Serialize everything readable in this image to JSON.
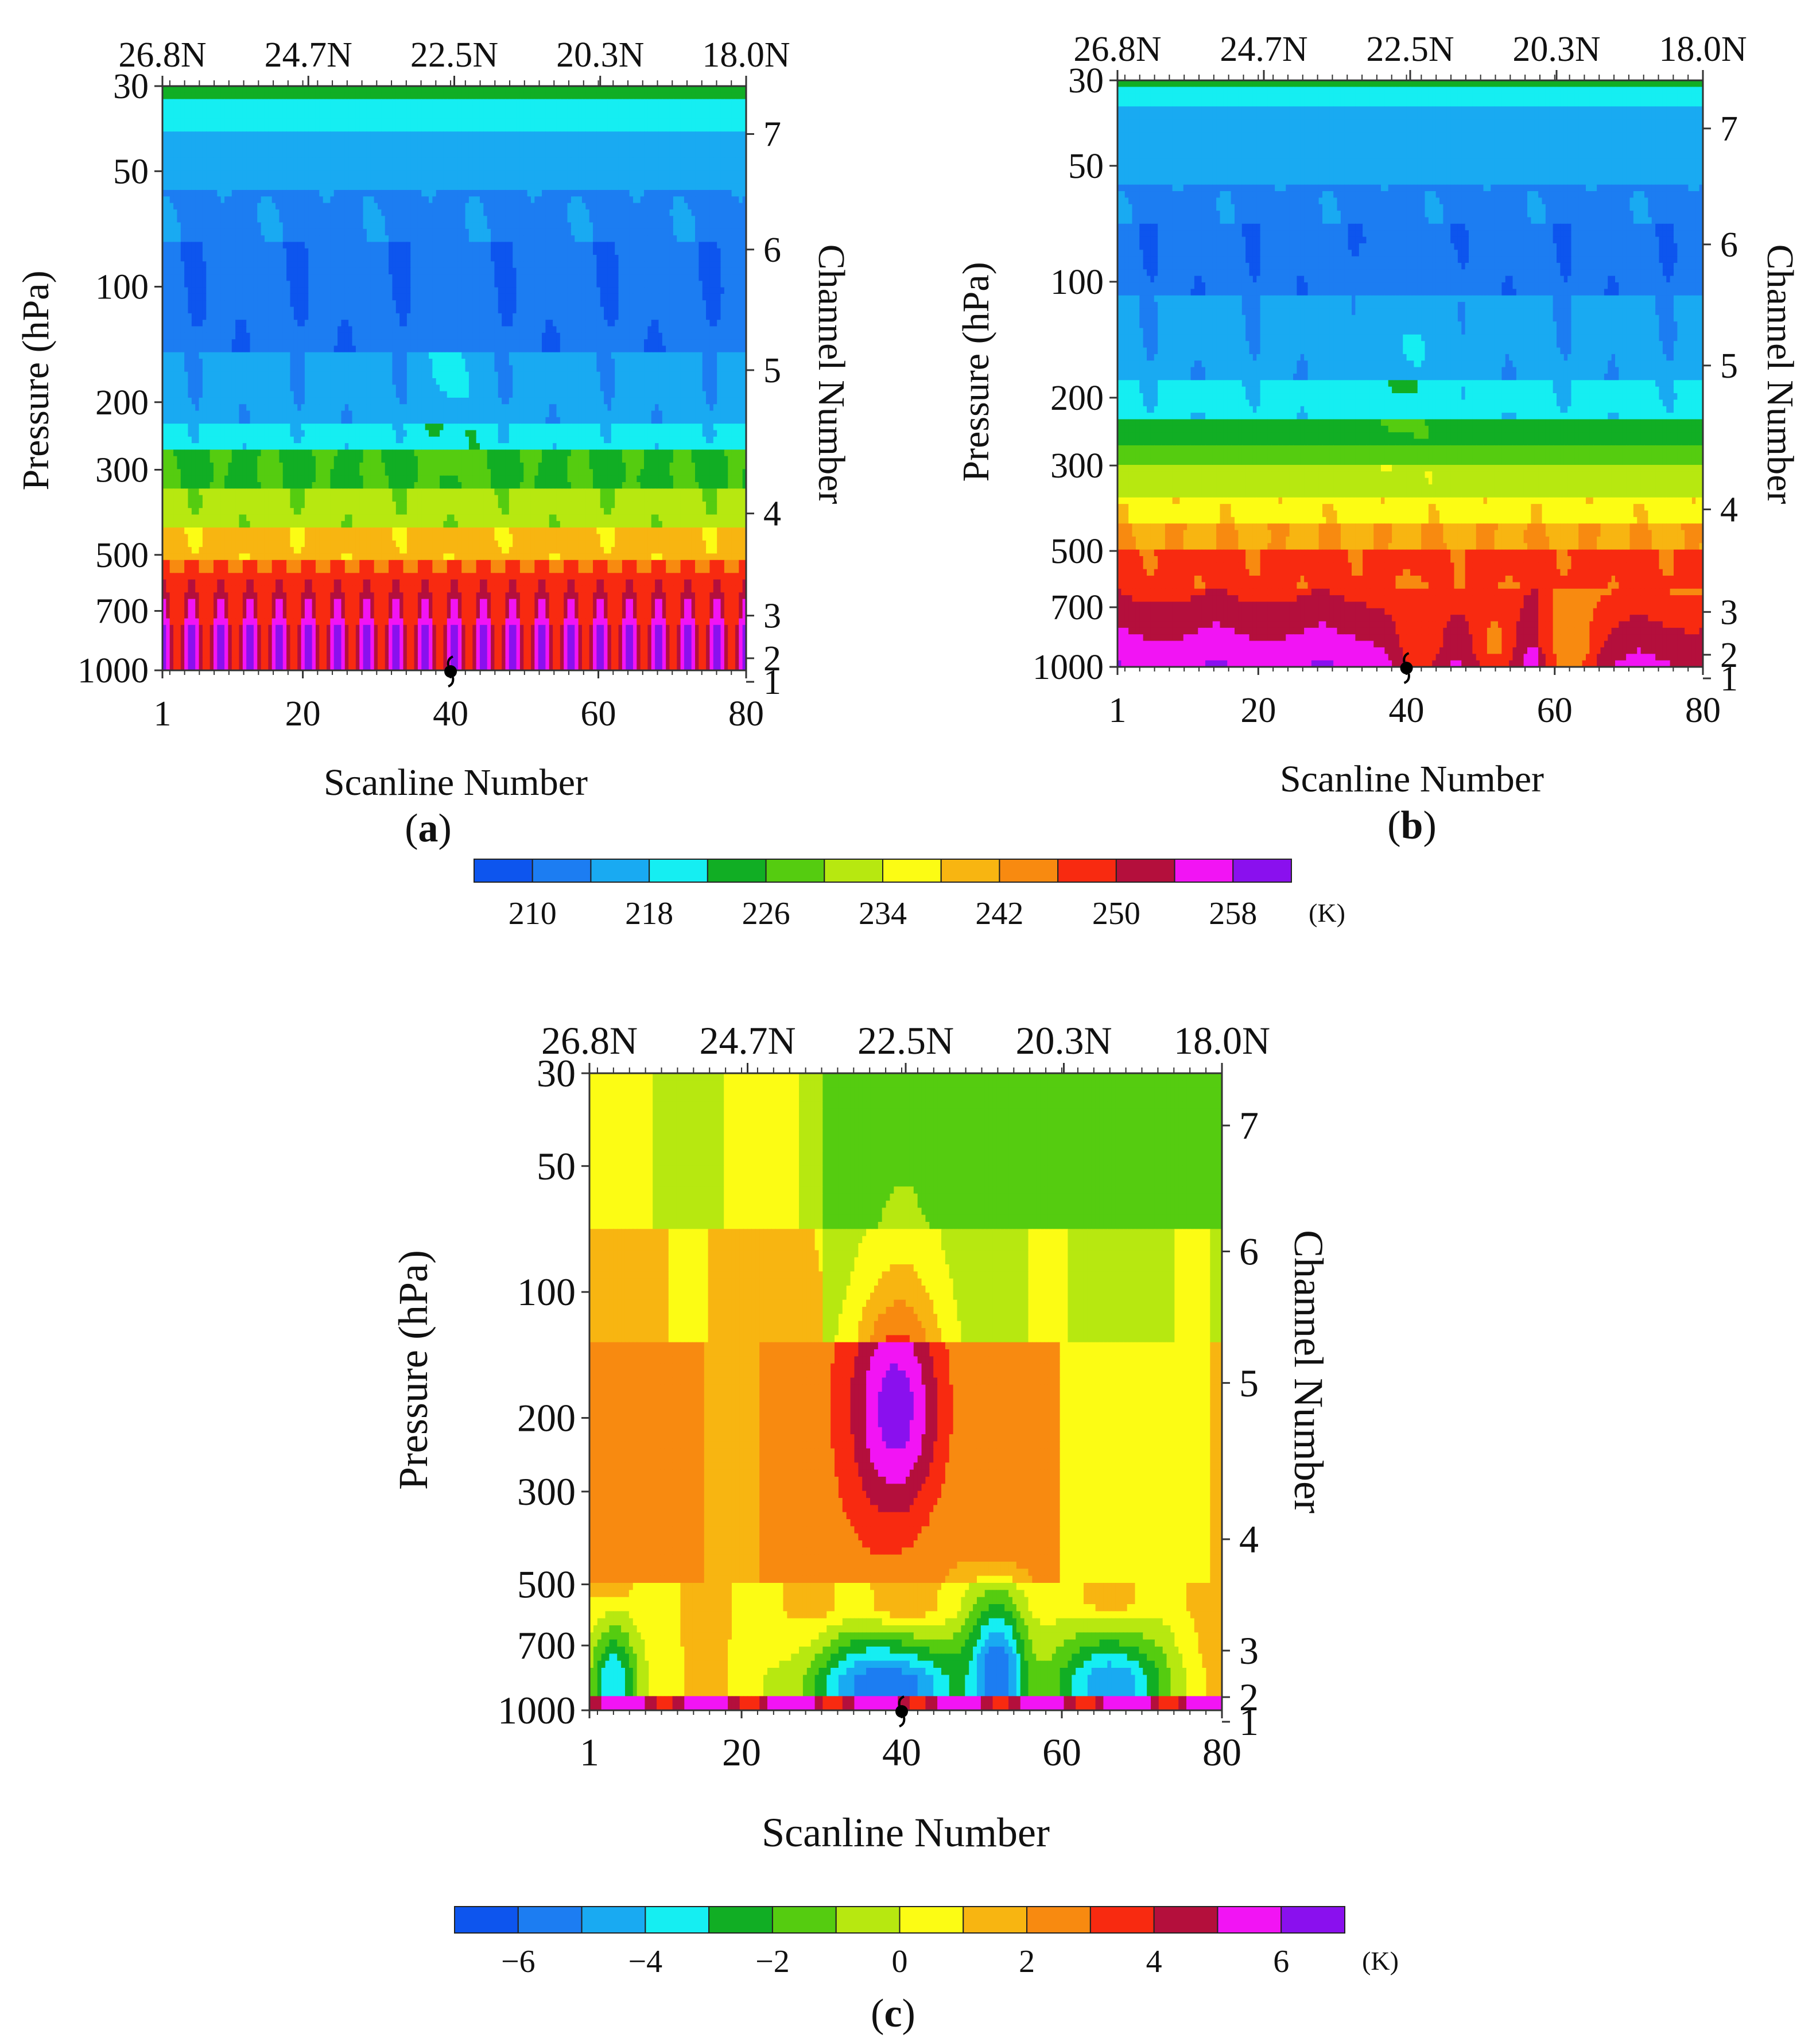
{
  "chart_data": [
    {
      "type": "heatmap",
      "panel_label": "a",
      "title": "",
      "xlabel": "Scanline Number",
      "ylabel": "Pressure (hPa)",
      "y2label": "Channel Number",
      "x_ticks": [
        1,
        20,
        40,
        60,
        80
      ],
      "top_ticks": [
        "26.8N",
        "24.7N",
        "22.5N",
        "20.3N",
        "18.0N"
      ],
      "y_ticks": [
        30,
        50,
        100,
        200,
        300,
        500,
        700,
        1000
      ],
      "channel_ticks": [
        1,
        2,
        3,
        4,
        5,
        6,
        7
      ],
      "xlim": [
        1,
        80
      ],
      "ylim": [
        1000,
        30
      ],
      "storm_center_scanline": 40,
      "colorbar": "temperature",
      "field": {
        "bands": [
          {
            "p_bottom": 1000,
            "p_top": 520,
            "value_low": 254,
            "value_high": 262,
            "amp": 0.12
          },
          {
            "p_bottom": 520,
            "p_top": 420,
            "value_low": 238,
            "value_high": 240,
            "amp": 0.05
          },
          {
            "p_bottom": 420,
            "p_top": 330,
            "value_low": 230,
            "value_high": 233,
            "amp": 0.06
          },
          {
            "p_bottom": 330,
            "p_top": 270,
            "value_low": 224,
            "value_high": 227,
            "amp": 0.06
          },
          {
            "p_bottom": 270,
            "p_top": 230,
            "value_low": 218,
            "value_high": 221,
            "amp": 0.04
          },
          {
            "p_bottom": 230,
            "p_top": 150,
            "value_low": 214,
            "value_high": 216,
            "amp": 0.05
          },
          {
            "p_bottom": 150,
            "p_top": 75,
            "value_low": 210,
            "value_high": 211,
            "amp": 0.05
          },
          {
            "p_bottom": 75,
            "p_top": 55,
            "value_low": 213,
            "value_high": 214,
            "amp": 0.05
          },
          {
            "p_bottom": 55,
            "p_top": 40,
            "value_low": 216,
            "value_high": 217,
            "amp": 0.06
          },
          {
            "p_bottom": 40,
            "p_top": 33,
            "value_low": 220,
            "value_high": 221,
            "amp": 0.08
          },
          {
            "p_bottom": 33,
            "p_top": 30,
            "value_low": 224,
            "value_high": 225,
            "amp": 0.1
          }
        ],
        "warm_core": {
          "center": 40,
          "width": 2.2,
          "p_low": 330,
          "p_high": 80,
          "boost": 4
        }
      }
    },
    {
      "type": "heatmap",
      "panel_label": "b",
      "title": "",
      "xlabel": "Scanline Number",
      "ylabel": "Pressure (hPa)",
      "y2label": "Channel Number",
      "x_ticks": [
        1,
        20,
        40,
        60,
        80
      ],
      "top_ticks": [
        "26.8N",
        "24.7N",
        "22.5N",
        "20.3N",
        "18.0N"
      ],
      "y_ticks": [
        30,
        50,
        100,
        200,
        300,
        500,
        700,
        1000
      ],
      "channel_ticks": [
        1,
        2,
        3,
        4,
        5,
        6,
        7
      ],
      "xlim": [
        1,
        80
      ],
      "ylim": [
        1000,
        30
      ],
      "storm_center_scanline": 40,
      "colorbar": "temperature",
      "field": {
        "bands": [
          {
            "p_bottom": 1000,
            "p_top": 620,
            "value_low": 250,
            "value_high": 260,
            "amp": 0.06
          },
          {
            "p_bottom": 620,
            "p_top": 500,
            "value_low": 246,
            "value_high": 248,
            "amp": 0.04
          },
          {
            "p_bottom": 500,
            "p_top": 420,
            "value_low": 240,
            "value_high": 243,
            "amp": 0.03
          },
          {
            "p_bottom": 420,
            "p_top": 360,
            "value_low": 236,
            "value_high": 238,
            "amp": 0.03
          },
          {
            "p_bottom": 360,
            "p_top": 300,
            "value_low": 231,
            "value_high": 233,
            "amp": 0.03
          },
          {
            "p_bottom": 300,
            "p_top": 265,
            "value_low": 227,
            "value_high": 228,
            "amp": 0.03
          },
          {
            "p_bottom": 265,
            "p_top": 230,
            "value_low": 223,
            "value_high": 224,
            "amp": 0.03
          },
          {
            "p_bottom": 230,
            "p_top": 180,
            "value_low": 218,
            "value_high": 219,
            "amp": 0.03
          },
          {
            "p_bottom": 180,
            "p_top": 110,
            "value_low": 214,
            "value_high": 215,
            "amp": 0.03
          },
          {
            "p_bottom": 110,
            "p_top": 70,
            "value_low": 210,
            "value_high": 211,
            "amp": 0.03
          },
          {
            "p_bottom": 70,
            "p_top": 55,
            "value_low": 213,
            "value_high": 214,
            "amp": 0.03
          },
          {
            "p_bottom": 55,
            "p_top": 35,
            "value_low": 216,
            "value_high": 217,
            "amp": 0.04
          },
          {
            "p_bottom": 35,
            "p_top": 31,
            "value_low": 220,
            "value_high": 221,
            "amp": 0.05
          },
          {
            "p_bottom": 31,
            "p_top": 30,
            "value_low": 224,
            "value_high": 225,
            "amp": 0.05
          }
        ],
        "warm_core": {
          "center": 40,
          "width": 3.2,
          "p_low": 330,
          "p_high": 80,
          "boost": 4
        },
        "cold_spots": [
          {
            "center": 42,
            "width": 2.5,
            "p_low": 1000,
            "p_high": 560,
            "drop": 10
          },
          {
            "center": 52,
            "width": 2.5,
            "p_low": 1000,
            "p_high": 600,
            "drop": 10
          },
          {
            "center": 62,
            "width": 2.5,
            "p_low": 1000,
            "p_high": 620,
            "drop": 10
          }
        ]
      }
    },
    {
      "type": "heatmap",
      "panel_label": "c",
      "title": "",
      "xlabel": "Scanline Number",
      "ylabel": "Pressure (hPa)",
      "y2label": "Channel Number",
      "x_ticks": [
        1,
        20,
        40,
        60,
        80
      ],
      "top_ticks": [
        "26.8N",
        "24.7N",
        "22.5N",
        "20.3N",
        "18.0N"
      ],
      "y_ticks": [
        30,
        50,
        100,
        200,
        300,
        500,
        700,
        1000
      ],
      "channel_ticks": [
        1,
        2,
        3,
        4,
        5,
        6,
        7
      ],
      "xlim": [
        1,
        80
      ],
      "ylim": [
        1000,
        30
      ],
      "storm_center_scanline": 40,
      "colorbar": "anomaly",
      "field": {
        "background": [
          {
            "p_bottom": 1000,
            "p_top": 500,
            "value": 1
          },
          {
            "p_bottom": 500,
            "p_top": 130,
            "value": 2.2
          },
          {
            "p_bottom": 130,
            "p_top": 70,
            "value": 0.6
          },
          {
            "p_bottom": 70,
            "p_top": 30,
            "value": -0.6
          }
        ],
        "warm_core": {
          "center": 39.5,
          "width": 4,
          "p_center": 190,
          "p_spread": 0.45,
          "peak": 6.5
        },
        "cold_columns": [
          {
            "center": 38,
            "width": 7,
            "p_high": 580,
            "min": -6
          },
          {
            "center": 52,
            "width": 2.6,
            "p_high": 430,
            "min": -6
          },
          {
            "center": 66,
            "width": 5,
            "p_high": 560,
            "min": -5
          },
          {
            "center": 4,
            "width": 2.2,
            "p_high": 520,
            "min": -4
          }
        ],
        "surface_warm_strip": {
          "p_low": 1000,
          "p_high": 930,
          "value": 6
        }
      }
    }
  ],
  "colorbars": {
    "temperature": {
      "levels": [
        206,
        210,
        214,
        218,
        222,
        226,
        230,
        234,
        238,
        242,
        246,
        250,
        254,
        258,
        262
      ],
      "colors": [
        "#0d55ee",
        "#1c7df2",
        "#19aaf2",
        "#15eef2",
        "#11ae24",
        "#55cc10",
        "#b7e810",
        "#fcfc14",
        "#f8b511",
        "#f88a10",
        "#f82a10",
        "#b40f3c",
        "#f214f4",
        "#8a10ee"
      ],
      "tick_labels": [
        "210",
        "218",
        "226",
        "234",
        "242",
        "250",
        "258"
      ],
      "tick_values": [
        210,
        218,
        226,
        234,
        242,
        250,
        258
      ],
      "unit": "(K)"
    },
    "anomaly": {
      "levels": [
        -7,
        -6,
        -5,
        -4,
        -3,
        -2,
        -1,
        0,
        1,
        2,
        3,
        4,
        5,
        6,
        7
      ],
      "colors": [
        "#0d55ee",
        "#1c7df2",
        "#19aaf2",
        "#15eef2",
        "#11ae24",
        "#55cc10",
        "#b7e810",
        "#fcfc14",
        "#f8b511",
        "#f88a10",
        "#f82a10",
        "#b40f3c",
        "#f214f4",
        "#8a10ee"
      ],
      "tick_labels": [
        "−6",
        "−4",
        "−2",
        "0",
        "2",
        "4",
        "6"
      ],
      "tick_values": [
        -6,
        -4,
        -2,
        0,
        2,
        4,
        6
      ],
      "unit": "(K)"
    }
  }
}
